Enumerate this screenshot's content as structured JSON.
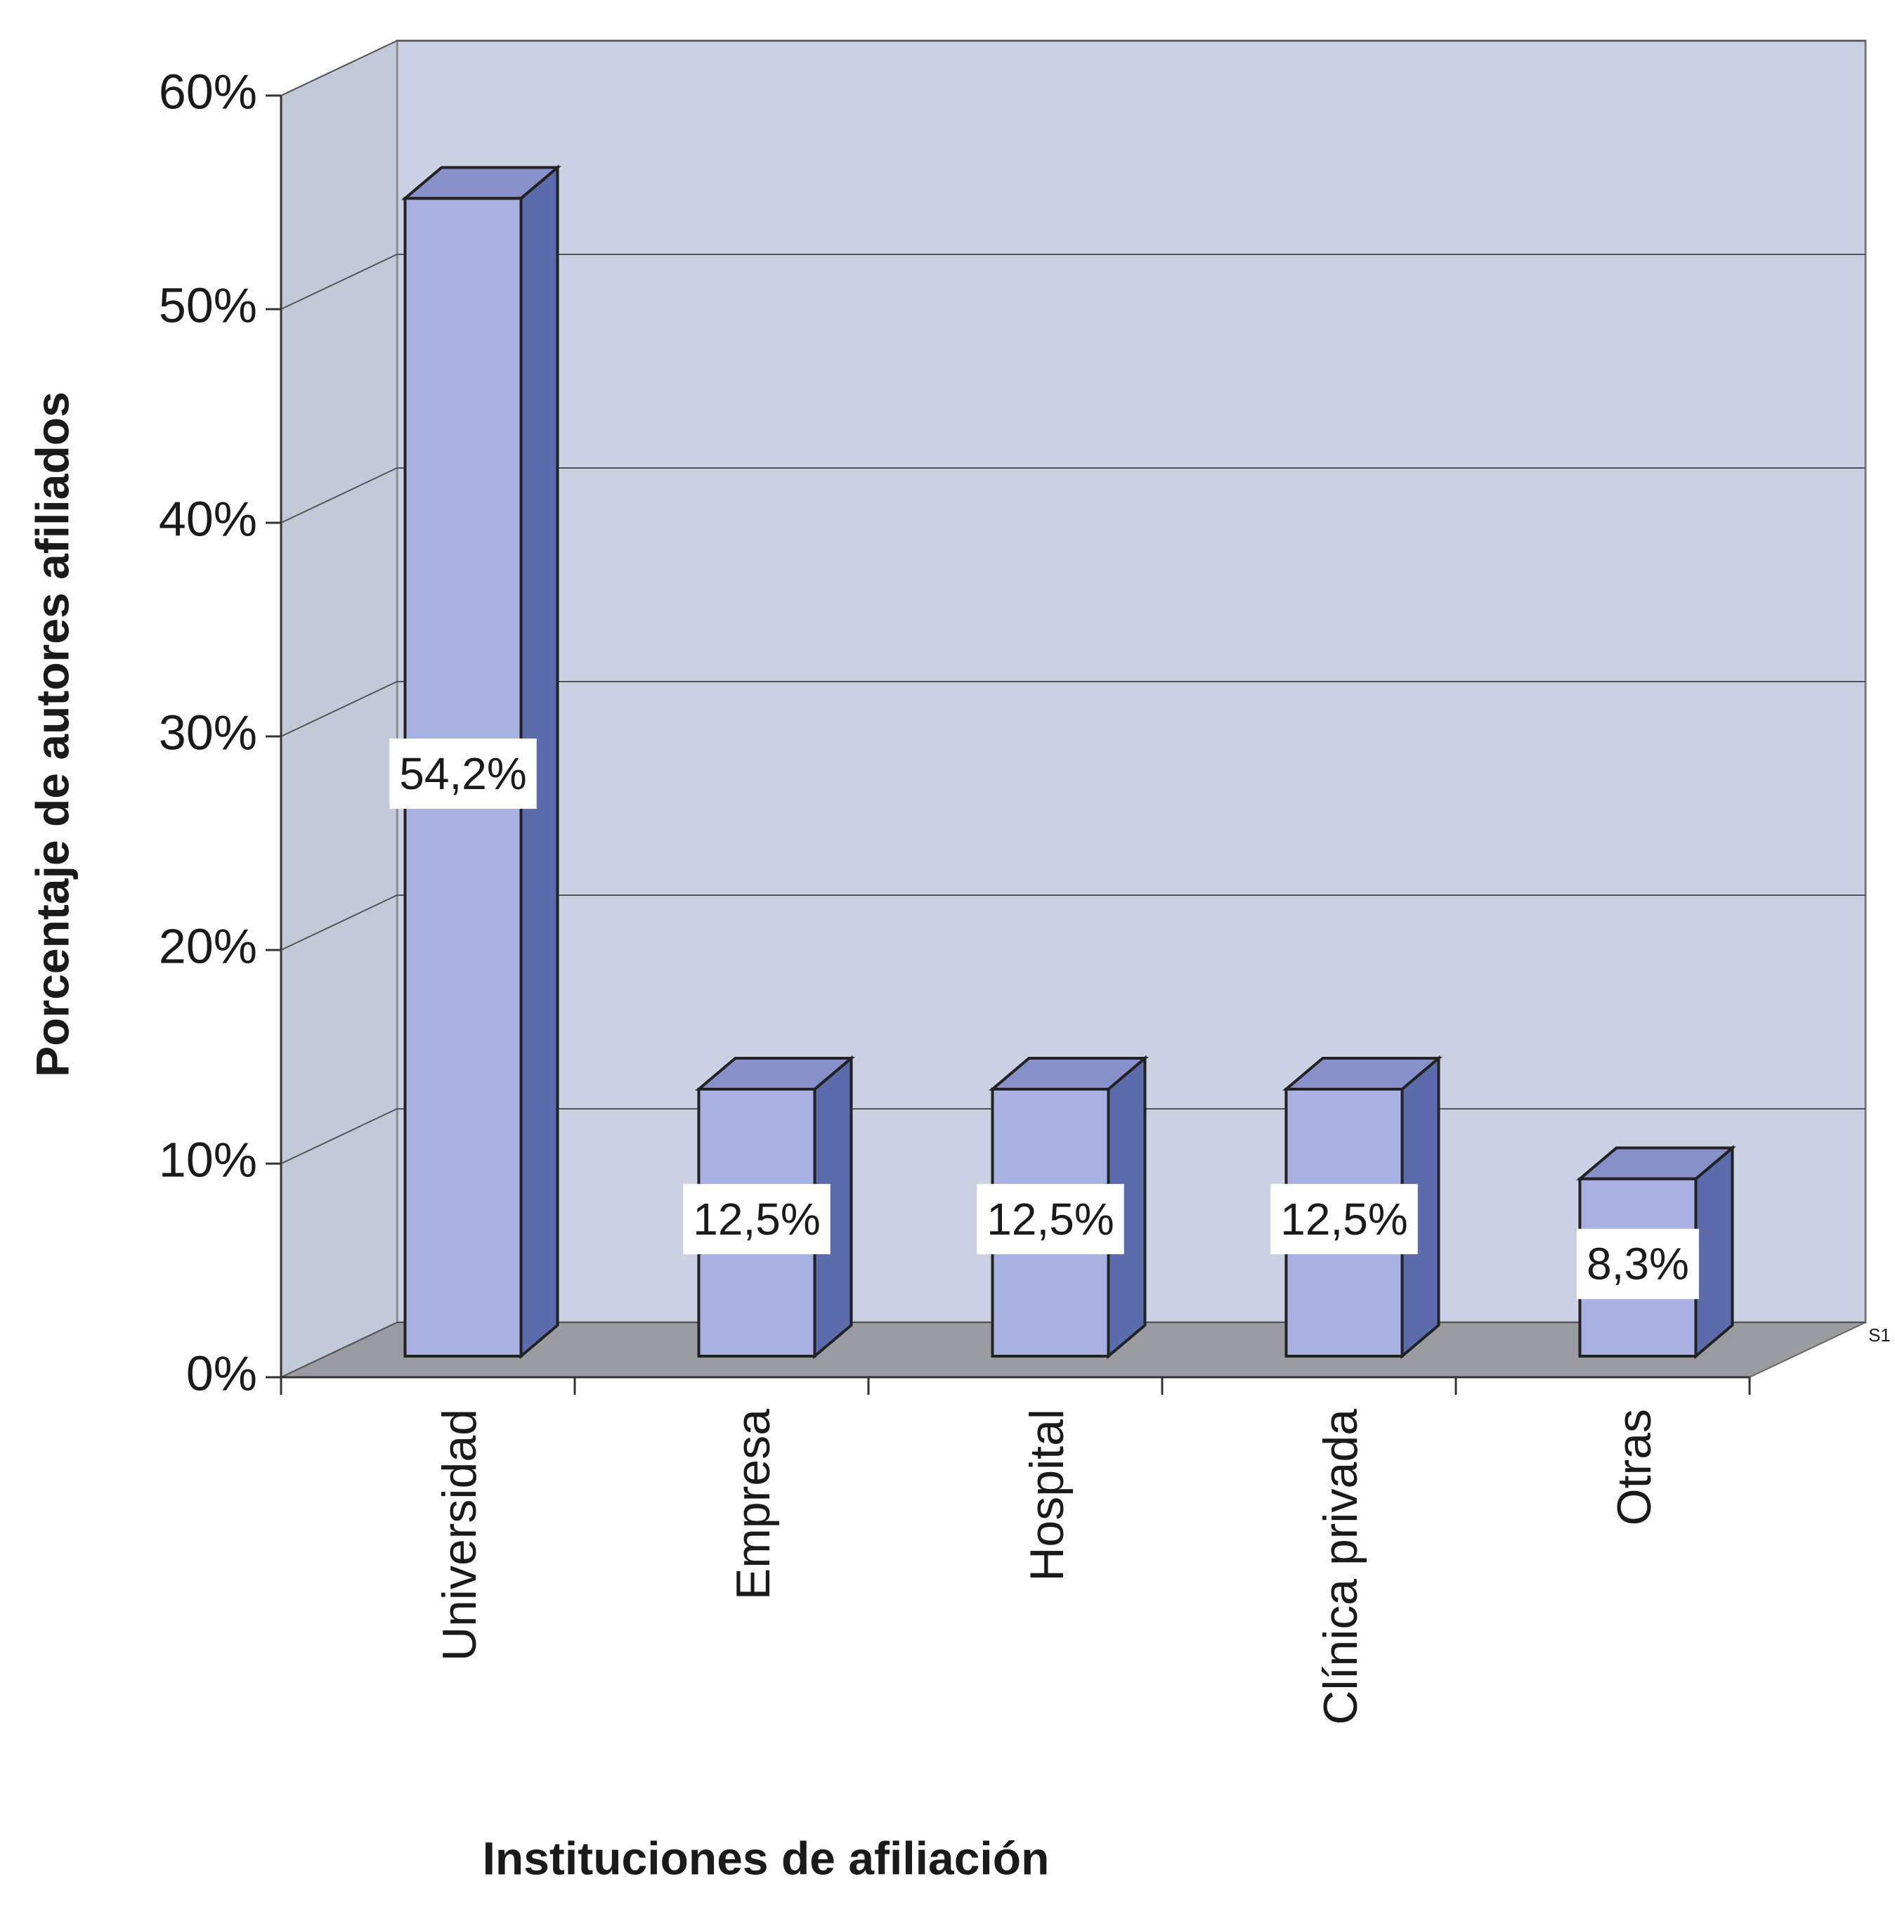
{
  "chart_data": {
    "type": "bar3d",
    "x_label": "Instituciones de afiliación",
    "y_label": "Porcentaje de autores afiliados",
    "categories": [
      "Universidad",
      "Empresa",
      "Hospital",
      "Clínica privada",
      "Otras"
    ],
    "series": [
      {
        "name": "S1",
        "color": "#a9b1e3",
        "values": [
          54.2,
          12.5,
          12.5,
          12.5,
          8.3
        ],
        "value_labels": [
          "54,2%",
          "12,5%",
          "12,5%",
          "12,5%",
          "8,3%"
        ]
      }
    ],
    "ylim": [
      0,
      60
    ],
    "yticks": [
      {
        "value": 0,
        "label": "0%"
      },
      {
        "value": 10,
        "label": "10%"
      },
      {
        "value": 20,
        "label": "20%"
      },
      {
        "value": 30,
        "label": "30%"
      },
      {
        "value": 40,
        "label": "40%"
      },
      {
        "value": 50,
        "label": "50%"
      },
      {
        "value": 60,
        "label": "60%"
      }
    ],
    "grid": true
  }
}
